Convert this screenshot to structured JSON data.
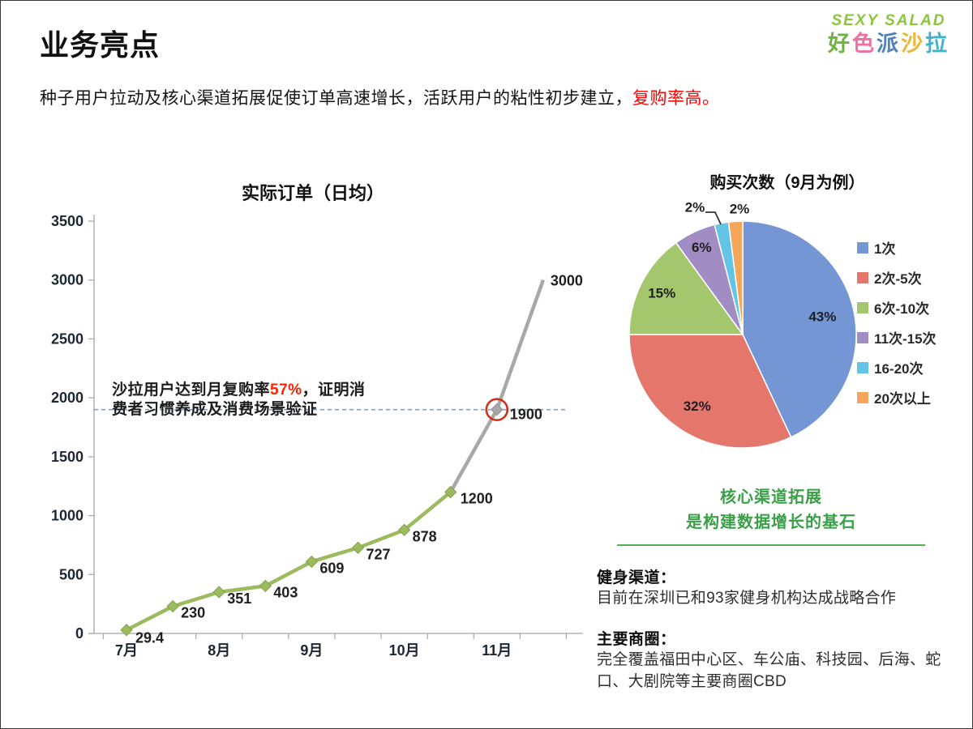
{
  "header": {
    "title": "业务亮点",
    "subtitle_main": "种子用户拉动及核心渠道拓展促使订单高速增长，活跃用户的粘性初步建立，",
    "subtitle_highlight": "复购率高。",
    "logo": {
      "en": "SEXY SALAD",
      "en_color": "#8cc63e",
      "cn_chars": [
        {
          "char": "好",
          "color": "#6cb33f"
        },
        {
          "char": "色",
          "color": "#ee6fa0"
        },
        {
          "char": "派",
          "color": "#4f81bd"
        },
        {
          "char": "沙",
          "color": "#e8b93d"
        },
        {
          "char": "拉",
          "color": "#3fb4c8"
        }
      ]
    }
  },
  "chart_data": [
    {
      "type": "line",
      "title": "实际订单（日均）",
      "x_categories": [
        "7月",
        "8月",
        "9月",
        "10月",
        "11月"
      ],
      "x_note": "10 points at half-month spacing, month labels under points 0,2,4,6,8",
      "values": [
        29.4,
        230,
        351,
        403,
        609,
        727,
        878,
        1200,
        1900,
        3000
      ],
      "point_labels": [
        "29.4",
        "230",
        "351",
        "403",
        "609",
        "727",
        "878",
        "1200",
        "1900",
        "3000"
      ],
      "actual_points": 8,
      "series_colors": {
        "actual": "#9cba5e",
        "projection": "#a8a8a8"
      },
      "ylim": [
        0,
        3500
      ],
      "ytick_step": 500,
      "grid": false,
      "reference_line": {
        "value": 1900,
        "style": "dashed",
        "color": "#7ba2d6"
      },
      "highlight": {
        "index": 8,
        "value": 1900,
        "marker": "red-circle",
        "color": "#cc3220"
      },
      "annotation": {
        "line1_prefix": "沙拉用户达到月复购率",
        "highlight": "57%",
        "line1_suffix": "，证明消",
        "line2": "费者习惯养成及消费场景验证",
        "highlight_color": "#ff2000"
      }
    },
    {
      "type": "pie",
      "title": "购买次数（9月为例）",
      "start_angle": "12-oclock",
      "direction": "clockwise",
      "legend_position": "right",
      "slices": [
        {
          "label": "1次",
          "value": 43,
          "pct": "43%",
          "color": "#7496d4"
        },
        {
          "label": "2次-5次",
          "value": 32,
          "pct": "32%",
          "color": "#e4766c"
        },
        {
          "label": "6次-10次",
          "value": 15,
          "pct": "15%",
          "color": "#a4c76e"
        },
        {
          "label": "11次-15次",
          "value": 6,
          "pct": "6%",
          "color": "#a18cc4"
        },
        {
          "label": "16-20次",
          "value": 2,
          "pct": "2%",
          "color": "#63c4e6"
        },
        {
          "label": "20次以上",
          "value": 2,
          "pct": "2%",
          "color": "#f4a75a"
        }
      ]
    }
  ],
  "right_panel": {
    "green_heading_line1": "核心渠道拓展",
    "green_heading_line2": "是构建数据增长的基石",
    "green_color": "#3aa048",
    "sections": [
      {
        "heading": "健身渠道：",
        "body": "目前在深圳已和93家健身机构达成战略合作"
      },
      {
        "heading": "主要商圈：",
        "body": "完全覆盖福田中心区、车公庙、科技园、后海、蛇口、大剧院等主要商圈CBD"
      }
    ]
  }
}
